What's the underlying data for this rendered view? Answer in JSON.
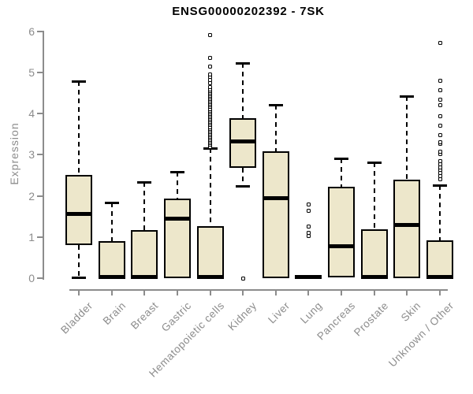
{
  "title": "ENSG00000202392 - 7SK",
  "colors": {
    "box_fill": "#EDE7CB",
    "box_border": "#000000",
    "median": "#000000",
    "axis": "#8c8c8c",
    "axis_text": "#8c8c8c",
    "title_text": "#000000"
  },
  "chart_data": {
    "type": "boxplot",
    "title": "ENSG00000202392 - 7SK",
    "xlabel": "",
    "ylabel": "Expression",
    "ylim": [
      0,
      6
    ],
    "y_ticks": [
      0,
      1,
      2,
      3,
      4,
      5,
      6
    ],
    "grid": false,
    "legend": "none",
    "categories": [
      "Bladder",
      "Brain",
      "Breast",
      "Gastric",
      "Hematopoietic cells",
      "Kidney",
      "Liver",
      "Lung",
      "Pancreas",
      "Prostate",
      "Skin",
      "Unknown / Other"
    ],
    "boxes": [
      {
        "category": "Bladder",
        "whisker_low": 0.02,
        "q1": 0.8,
        "median": 1.58,
        "q3": 2.52,
        "whisker_high": 4.8,
        "outliers": []
      },
      {
        "category": "Brain",
        "whisker_low": 0,
        "q1": 0,
        "median": 0.04,
        "q3": 0.9,
        "whisker_high": 1.84,
        "outliers": []
      },
      {
        "category": "Breast",
        "whisker_low": 0,
        "q1": 0,
        "median": 0.04,
        "q3": 1.17,
        "whisker_high": 2.33,
        "outliers": []
      },
      {
        "category": "Gastric",
        "whisker_low": 0,
        "q1": 0,
        "median": 1.46,
        "q3": 1.94,
        "whisker_high": 2.58,
        "outliers": []
      },
      {
        "category": "Hematopoietic cells",
        "whisker_low": 0,
        "q1": 0,
        "median": 0.04,
        "q3": 1.26,
        "whisker_high": 3.16,
        "outliers": [
          3.2,
          3.24,
          3.28,
          3.32,
          3.36,
          3.4,
          3.44,
          3.48,
          3.52,
          3.56,
          3.6,
          3.64,
          3.68,
          3.72,
          3.76,
          3.8,
          3.84,
          3.88,
          3.92,
          3.96,
          4.0,
          4.04,
          4.08,
          4.12,
          4.16,
          4.2,
          4.24,
          4.28,
          4.32,
          4.36,
          4.4,
          4.44,
          4.48,
          4.52,
          4.56,
          4.6,
          4.64,
          4.75,
          4.82,
          4.89,
          4.96,
          5.15,
          5.36,
          5.92
        ]
      },
      {
        "category": "Kidney",
        "whisker_low": 2.25,
        "q1": 2.68,
        "median": 3.34,
        "q3": 3.9,
        "whisker_high": 5.23,
        "outliers": [
          0.0
        ]
      },
      {
        "category": "Liver",
        "whisker_low": 0,
        "q1": 0,
        "median": 1.96,
        "q3": 3.08,
        "whisker_high": 4.22,
        "outliers": []
      },
      {
        "category": "Lung",
        "whisker_low": 0,
        "q1": 0,
        "median": 0.03,
        "q3": 0.08,
        "whisker_high": 0.08,
        "outliers": [
          1.8,
          1.63,
          1.25,
          1.1,
          1.02
        ]
      },
      {
        "category": "Pancreas",
        "whisker_low": 0,
        "q1": 0.02,
        "median": 0.78,
        "q3": 2.23,
        "whisker_high": 2.91,
        "outliers": []
      },
      {
        "category": "Prostate",
        "whisker_low": 0,
        "q1": 0,
        "median": 0.04,
        "q3": 1.19,
        "whisker_high": 2.82,
        "outliers": []
      },
      {
        "category": "Skin",
        "whisker_low": 0,
        "q1": 0,
        "median": 1.31,
        "q3": 2.39,
        "whisker_high": 4.42,
        "outliers": []
      },
      {
        "category": "Unknown / Other",
        "whisker_low": 0,
        "q1": 0,
        "median": 0.04,
        "q3": 0.92,
        "whisker_high": 2.26,
        "outliers": [
          2.41,
          2.48,
          2.56,
          2.63,
          2.7,
          2.77,
          2.84,
          3.02,
          3.08,
          3.26,
          3.3,
          3.47,
          3.7,
          3.93,
          4.2,
          4.35,
          4.58,
          4.81,
          5.73
        ]
      }
    ]
  }
}
